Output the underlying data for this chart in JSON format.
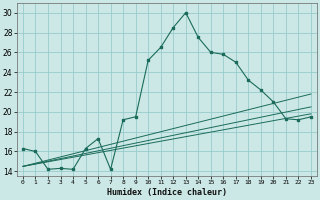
{
  "xlabel": "Humidex (Indice chaleur)",
  "bg_color": "#cce8e6",
  "grid_color": "#99cccc",
  "line_color": "#1a6b5a",
  "xlim": [
    -0.5,
    23.5
  ],
  "ylim": [
    13.5,
    31.0
  ],
  "xtick_labels": [
    "0",
    "1",
    "2",
    "3",
    "4",
    "5",
    "6",
    "7",
    "8",
    "9",
    "10",
    "11",
    "12",
    "13",
    "14",
    "15",
    "16",
    "17",
    "18",
    "19",
    "20",
    "21",
    "22",
    "23"
  ],
  "ytick_labels": [
    "14",
    "16",
    "18",
    "20",
    "22",
    "24",
    "26",
    "28",
    "30"
  ],
  "ytick_vals": [
    14,
    16,
    18,
    20,
    22,
    24,
    26,
    28,
    30
  ],
  "main_x": [
    0,
    1,
    2,
    3,
    4,
    5,
    6,
    7,
    8,
    9,
    10,
    11,
    12,
    13,
    14,
    15,
    16,
    17,
    18,
    19,
    20,
    21,
    22,
    23
  ],
  "main_y": [
    16.3,
    16.0,
    14.2,
    14.3,
    14.2,
    16.3,
    17.3,
    14.2,
    19.2,
    19.5,
    25.2,
    26.5,
    28.5,
    30.0,
    27.5,
    26.0,
    25.8,
    25.0,
    23.2,
    22.2,
    21.0,
    19.3,
    19.2,
    19.5
  ]
}
